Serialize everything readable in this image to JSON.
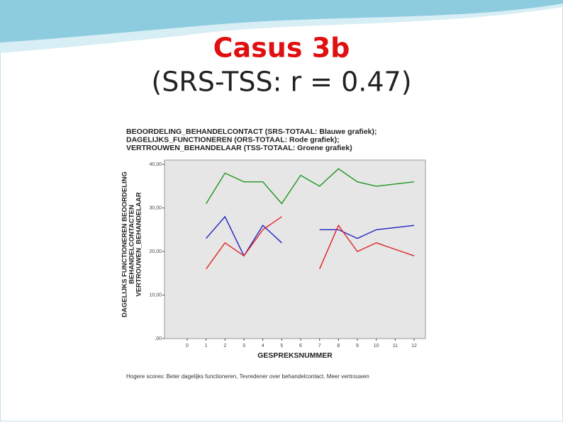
{
  "title": "Casus 3b",
  "subtitle": "(SRS-TSS: r = 0.47)",
  "chart_data": {
    "type": "line",
    "title_lines": [
      "BEOORDELING_BEHANDELCONTACT  (SRS-TOTAAL: Blauwe grafiek);",
      "DAGELIJKS_FUNCTIONEREN (ORS-TOTAAL: Rode grafiek);",
      "VERTROUWEN_BEHANDELAAR (TSS-TOTAAL: Groene grafiek)"
    ],
    "ylabel_lines": [
      "DAGELIJKS FUNCTIONEREN BEOORDELING",
      "BEHANDELCONTACTEN",
      "VERTROUWEN_BEHANDELAAR"
    ],
    "xlabel": "GESPREKSNUMMER",
    "footnote": "Hogere scores: Beter dagelijks functioneren, Tevredener over behandelcontact, Meer vertrouwen",
    "x": [
      1,
      2,
      3,
      4,
      5,
      6,
      7,
      8,
      9,
      10,
      11,
      12
    ],
    "series": [
      {
        "color": "#2222c0",
        "values": [
          23,
          28,
          19,
          26,
          22,
          null,
          25,
          25,
          23,
          25,
          25.5,
          26
        ]
      },
      {
        "color": "#e02424",
        "values": [
          16,
          22,
          19,
          25,
          28,
          null,
          16,
          26,
          20,
          22,
          20.5,
          19
        ]
      },
      {
        "color": "#1e961e",
        "values": [
          31,
          38,
          36,
          36,
          31,
          37.5,
          35,
          39,
          36,
          35,
          35.5,
          36
        ]
      }
    ],
    "xlim": [
      -1.2,
      12.6
    ],
    "xticks": [
      0,
      1,
      2,
      3,
      4,
      5,
      6,
      7,
      8,
      9,
      10,
      11,
      12
    ],
    "ylim": [
      0,
      41
    ],
    "yticks": [
      {
        "value": 0,
        "label": ",00"
      },
      {
        "value": 10,
        "label": "10,00"
      },
      {
        "value": 20,
        "label": "20,00"
      },
      {
        "value": 30,
        "label": "30,00"
      },
      {
        "value": 40,
        "label": "40,00"
      }
    ]
  }
}
